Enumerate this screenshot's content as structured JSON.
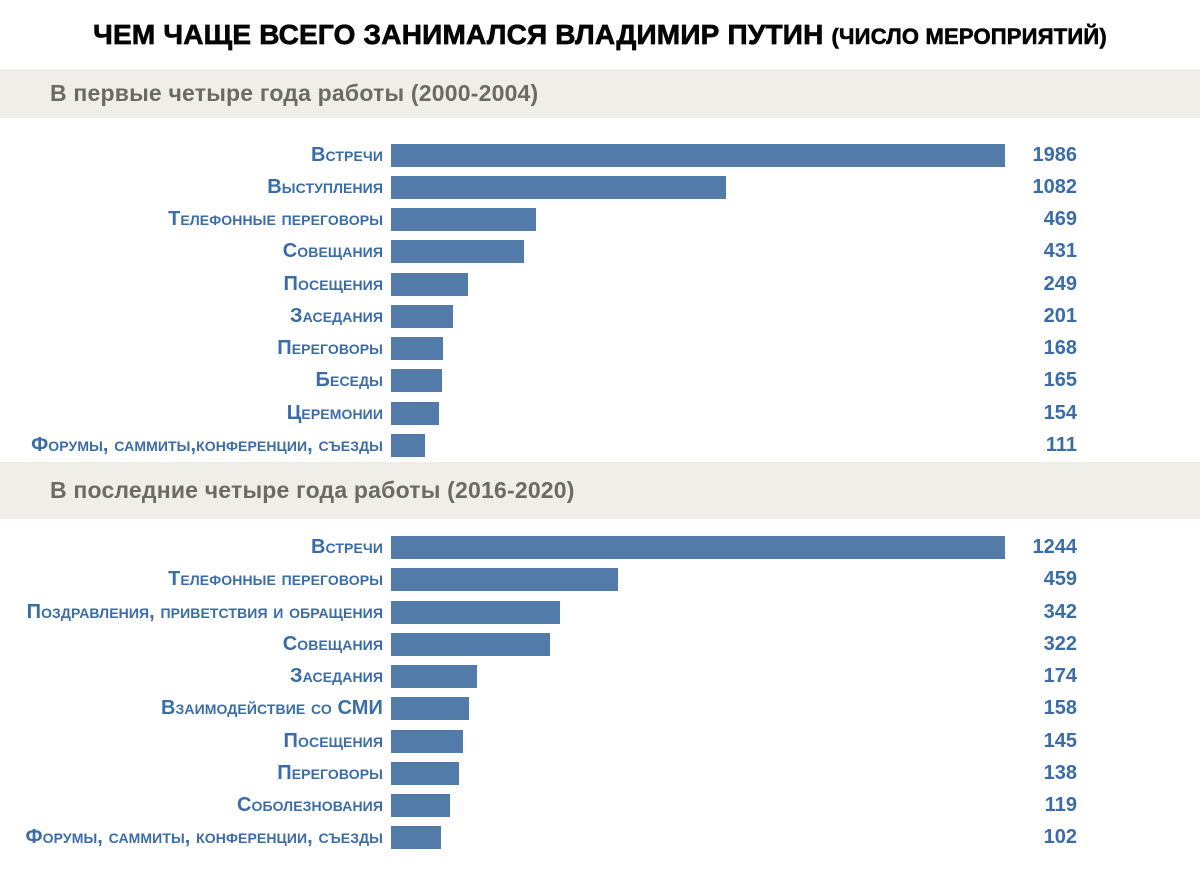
{
  "header": {
    "title": "ЧЕМ ЧАЩЕ ВСЕГО ЗАНИМАЛСЯ ВЛАДИМИР ПУТИН",
    "title_note": "(ЧИСЛО МЕРОПРИЯТИЙ)"
  },
  "colors": {
    "bar": "#527BA9",
    "text_blue": "#3A6CA9",
    "band_bg": "#EFEEE8",
    "band_text": "#6C6A64",
    "title": "#050505"
  },
  "chart_data": [
    {
      "type": "bar",
      "orientation": "horizontal",
      "title": "В первые четыре года работы (2000-2004)",
      "categories": [
        "Встречи",
        "Выступления",
        "Телефонные переговоры",
        "Совещания",
        "Посещения",
        "Заседания",
        "Переговоры",
        "Беседы",
        "Церемонии",
        "Форумы, саммиты,конференции, съезды"
      ],
      "values": [
        1986,
        1082,
        469,
        431,
        249,
        201,
        168,
        165,
        154,
        111
      ],
      "xlim": [
        0,
        1986
      ],
      "value_labels": true,
      "grid": false,
      "legend": false
    },
    {
      "type": "bar",
      "orientation": "horizontal",
      "title": "В последние четыре года работы (2016-2020)",
      "categories": [
        "Встречи",
        "Телефонные переговоры",
        "Поздравления, приветствия и обращения",
        "Совещания",
        "Заседания",
        "Взаимодействие со СМИ",
        "Посещения",
        "Переговоры",
        "Соболезнования",
        "Форумы, саммиты, конференции, съезды"
      ],
      "values": [
        1244,
        459,
        342,
        322,
        174,
        158,
        145,
        138,
        119,
        102
      ],
      "xlim": [
        0,
        1244
      ],
      "value_labels": true,
      "grid": false,
      "legend": false
    }
  ]
}
